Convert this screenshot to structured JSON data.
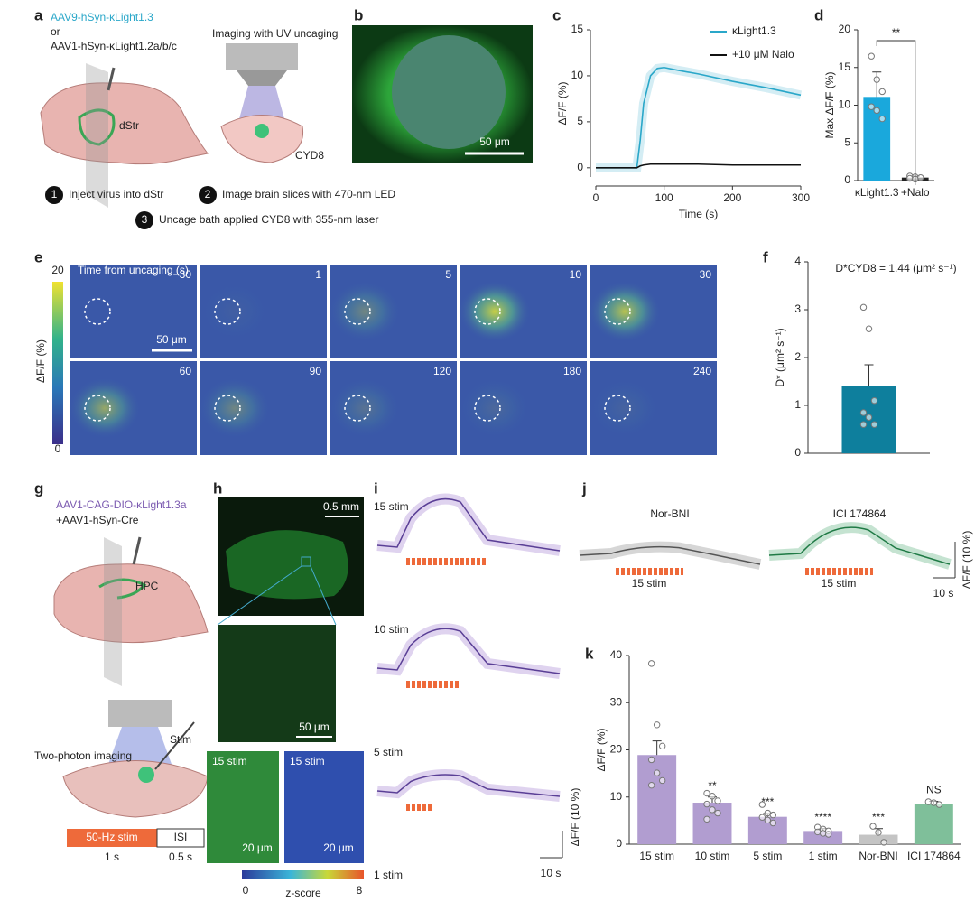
{
  "panels": {
    "a": {
      "label": "a",
      "vector1": "AAV9-hSyn-κLight1.3",
      "or": "or",
      "vector2": "AAV1-hSyn-κLight1.2a/b/c",
      "imaging": "Imaging with UV uncaging",
      "region": "dStr",
      "compound": "CYD8",
      "steps": [
        {
          "number": "1",
          "text": "Inject virus into dStr"
        },
        {
          "number": "2",
          "text": "Image brain slices with 470-nm LED"
        },
        {
          "number": "3",
          "text": "Uncage bath applied CYD8 with 355-nm laser"
        }
      ]
    },
    "b": {
      "label": "b",
      "scale": "50 μm"
    },
    "c": {
      "label": "c"
    },
    "d": {
      "label": "d"
    },
    "e": {
      "label": "e",
      "colorbar_title": "ΔF/F (%)",
      "colorbar_max": "20",
      "colorbar_min": "0",
      "time_caption": "Time from uncaging (s)",
      "scale": "50 μm",
      "times": [
        "−30",
        "1",
        "5",
        "10",
        "30",
        "60",
        "90",
        "120",
        "180",
        "240"
      ]
    },
    "f": {
      "label": "f"
    },
    "g": {
      "label": "g",
      "vector1": "AAV1-CAG-DIO-κLight1.3a",
      "vector2": "+AAV1-hSyn-Cre",
      "region": "HPC",
      "imaging": "Two-photon imaging",
      "stim": "Stim",
      "protocol_stim": "50-Hz stim",
      "protocol_isi": "ISI",
      "duration_stim": "1 s",
      "duration_isi": "0.5 s"
    },
    "h": {
      "label": "h",
      "scale1": "0.5 mm",
      "scale2": "50 μm",
      "inset1": "15 stim",
      "inset2": "15 stim",
      "scale3": "20 μm",
      "scale4": "20 μm",
      "colorbar_min": "0",
      "colorbar_label": "z-score",
      "colorbar_max": "8"
    },
    "i": {
      "label": "i",
      "traces": [
        "15 stim",
        "10 stim",
        "5 stim",
        "1 stim"
      ],
      "scale_y": "ΔF/F (10 %)",
      "scale_x": "10 s"
    },
    "j": {
      "label": "j",
      "conditions": [
        "Nor-BNI",
        "ICI 174864"
      ],
      "stim": [
        "15 stim",
        "15 stim"
      ],
      "scale_y": "ΔF/F (10 %)",
      "scale_x": "10 s"
    },
    "k": {
      "label": "k"
    }
  },
  "chart_data": [
    {
      "type": "line",
      "x": [
        0,
        20,
        40,
        60,
        65,
        70,
        80,
        90,
        100,
        120,
        150,
        200,
        250,
        300
      ],
      "series": [
        {
          "name": "κLight1.3",
          "color": "#2aa7c9",
          "values": [
            0,
            0,
            0,
            0,
            3,
            7,
            10,
            10.8,
            10.9,
            10.6,
            10.2,
            9.4,
            8.7,
            7.9
          ]
        },
        {
          "name": "+10 μM Nalo",
          "color": "#111111",
          "values": [
            0,
            0,
            0,
            0,
            0.2,
            0.3,
            0.4,
            0.4,
            0.4,
            0.4,
            0.4,
            0.3,
            0.3,
            0.3
          ]
        }
      ],
      "xlim": [
        0,
        300
      ],
      "xticks": [
        0,
        100,
        200,
        300
      ],
      "ylim": [
        -1,
        15
      ],
      "yticks": [
        0,
        5,
        10,
        15
      ],
      "xlabel": "Time (s)",
      "ylabel": "ΔF/F (%)",
      "legend": "upper right"
    },
    {
      "type": "bar",
      "categories": [
        "κLight1.3",
        "+Nalo"
      ],
      "values": [
        11.1,
        0.4
      ],
      "errors": [
        3.3,
        0.2
      ],
      "colors": [
        "#1aa8dc",
        "#222222"
      ],
      "points": [
        [
          16.5,
          13.4,
          11.8,
          9.8,
          9.3,
          8.2
        ],
        [
          0.6,
          0.5,
          0.4,
          0.3,
          0.2
        ]
      ],
      "ylim": [
        0,
        20
      ],
      "yticks": [
        0,
        5,
        10,
        15,
        20
      ],
      "ylabel": "Max ΔF/F (%)",
      "annotation": "**"
    },
    {
      "type": "bar",
      "categories": [
        null
      ],
      "values": [
        1.4
      ],
      "errors": [
        0.45
      ],
      "colors": [
        "#0e7f9d"
      ],
      "points": [
        [
          3.05,
          2.6,
          1.1,
          0.85,
          0.75,
          0.6,
          0.6
        ]
      ],
      "ylim": [
        0,
        4
      ],
      "yticks": [
        0,
        1,
        2,
        3,
        4
      ],
      "ylabel": "D* (μm² s⁻¹)",
      "annotation": "D*CYD8 = 1.44 (μm² s⁻¹)"
    },
    {
      "type": "bar",
      "categories": [
        "15 stim",
        "10 stim",
        "5 stim",
        "1 stim",
        "Nor-BNI",
        "ICI 174864"
      ],
      "values": [
        18.9,
        8.8,
        5.8,
        2.8,
        2,
        8.6
      ],
      "errors": [
        3,
        1.2,
        0.7,
        0.5,
        1.3,
        0.5
      ],
      "colors": [
        "#b19dd0",
        "#b19dd0",
        "#b19dd0",
        "#b19dd0",
        "#c4c4c4",
        "#7fbf9a"
      ],
      "points": [
        [
          38.3,
          25.3,
          20.8,
          17.9,
          15.1,
          13.5,
          12.5
        ],
        [
          10.8,
          10.2,
          9.2,
          8.5,
          7.3,
          6.6,
          5.3
        ],
        [
          8.4,
          6.6,
          6.2,
          5.7,
          5.1,
          4.5
        ],
        [
          3.6,
          3.2,
          2.8,
          2.6,
          2.3,
          2.1
        ],
        [
          3.8,
          2.5,
          0.4
        ],
        [
          9,
          8.8,
          8.4
        ]
      ],
      "significance": [
        null,
        "**",
        "***",
        "****",
        "***",
        "NS"
      ],
      "ylim": [
        0,
        40
      ],
      "yticks": [
        0,
        10,
        20,
        30,
        40
      ],
      "ylabel": "ΔF/F (%)"
    }
  ]
}
